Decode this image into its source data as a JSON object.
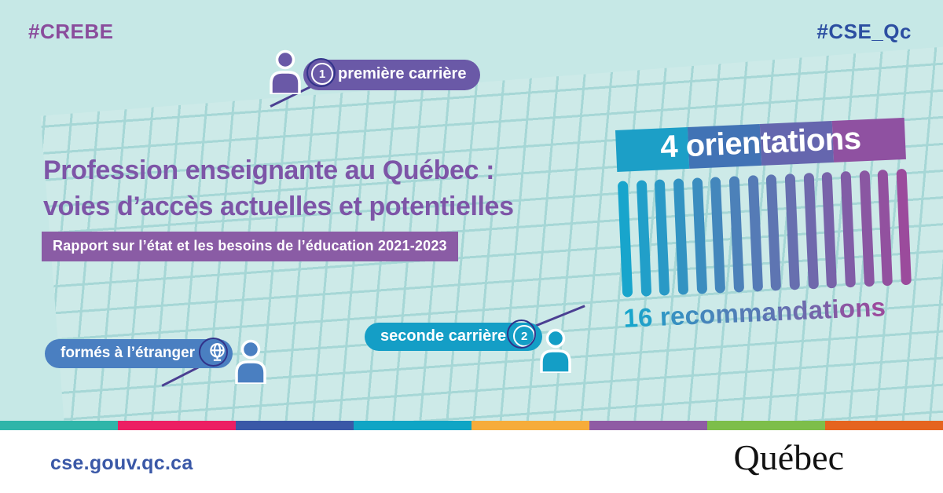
{
  "hashtags": {
    "left": "#CREBE",
    "right": "#CSE_Qc"
  },
  "title": {
    "line1": "Profession enseignante au Québec :",
    "line2": "voies d’accès actuelles et potentielles"
  },
  "report_banner": "Rapport sur l’état et les besoins de l’éducation 2021-2023",
  "badges": {
    "premiere": {
      "number": "1",
      "label": "première carrière"
    },
    "seconde": {
      "number": "2",
      "label": "seconde carrière"
    },
    "etranger": {
      "label": "formés à l’étranger"
    }
  },
  "orientations": {
    "label": "4 orientations",
    "segment_colors": [
      "#1c9fc7",
      "#4173b5",
      "#6566ae",
      "#8f51a1"
    ]
  },
  "recommendations": {
    "label": "16 recommandations",
    "count": 16,
    "color_start": "#18a5cc",
    "color_end": "#9b4b9c"
  },
  "stripe_colors": [
    "#2fb5a9",
    "#ec1f63",
    "#3a58a7",
    "#0fa5c5",
    "#f6ac3a",
    "#8f5ba4",
    "#7dbe4a",
    "#e5641f"
  ],
  "footer": {
    "url": "cse.gouv.qc.ca",
    "wordmark": "Québec"
  },
  "colors": {
    "background": "#c6e8e6",
    "grid_line": "#a6d7d6",
    "title": "#7d55a7",
    "report_banner_bg": "#8a5ca5",
    "hashtag_left": "#8a4c9c",
    "hashtag_right": "#2c4ea1",
    "pill_premiere": "#6a59a7",
    "pill_etranger": "#4a7fc1",
    "pill_seconde": "#149ec6",
    "person_premiere": "#6a59a7",
    "person_etranger": "#4a7fc1",
    "person_seconde": "#149ec6",
    "connector": "#4b3f92",
    "dark_ring": "#32338a",
    "url_blue": "#3a58a7",
    "flag_blue": "#3558a5"
  }
}
